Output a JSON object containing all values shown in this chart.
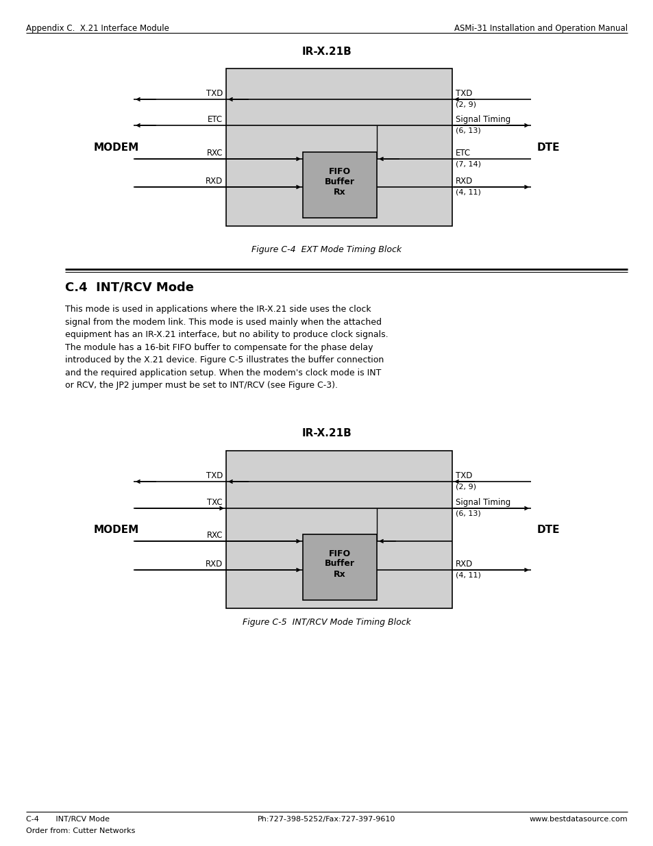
{
  "page_bg": "#ffffff",
  "header_left": "Appendix C.  X.21 Interface Module",
  "header_right": "ASMi-31 Installation and Operation Manual",
  "section_title": "C.4  INT/RCV Mode",
  "body_text_lines": [
    "This mode is used in applications where the IR-X.21 side uses the clock",
    "signal from the modem link. This mode is used mainly when the attached",
    "equipment has an IR-X.21 interface, but no ability to produce clock signals.",
    "The module has a 16-bit FIFO buffer to compensate for the phase delay",
    "introduced by the X.21 device. Figure C-5 illustrates the buffer connection",
    "and the required application setup. When the modem's clock mode is INT",
    "or RCV, the JP2 jumper must be set to INT/RCV (see Figure C-3)."
  ],
  "footer_left": "C-4       INT/RCV Mode",
  "footer_center": "Ph:727-398-5252/Fax:727-397-9610",
  "footer_right": "www.bestdatasource.com",
  "footer_order": "Order from: Cutter Networks",
  "diag1": {
    "title": "IR-X.21B",
    "outer_box_color": "#d0d0d0",
    "inner_box_color": "#a8a8a8",
    "caption": "Figure C-4  EXT Mode Timing Block"
  },
  "diag2": {
    "title": "IR-X.21B",
    "outer_box_color": "#d0d0d0",
    "inner_box_color": "#a8a8a8",
    "caption": "Figure C-5  INT/RCV Mode Timing Block"
  }
}
